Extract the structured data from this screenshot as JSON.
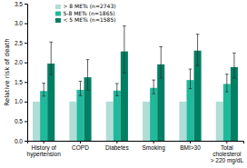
{
  "chart_data": {
    "type": "bar",
    "categories": [
      "History of\nhypertension",
      "COPD",
      "Diabetes",
      "Smoking",
      "BMI>30",
      "Total\ncholesterol\n> 220 mg/dL"
    ],
    "series": [
      {
        "name": "> 8 METs (n=2743)",
        "color": "#b0ddd5",
        "values": [
          1.0,
          1.0,
          1.0,
          1.0,
          1.0,
          1.0
        ],
        "error_low": [
          0.0,
          0.0,
          0.0,
          0.0,
          0.0,
          0.0
        ],
        "error_high": [
          0.0,
          0.0,
          0.0,
          0.0,
          0.0,
          0.0
        ]
      },
      {
        "name": "5-8 METs (n=1865)",
        "color": "#1fb99c",
        "values": [
          1.27,
          1.3,
          1.28,
          1.35,
          1.55,
          1.45
        ],
        "error_low": [
          0.13,
          0.15,
          0.13,
          0.15,
          0.22,
          0.2
        ],
        "error_high": [
          0.2,
          0.22,
          0.18,
          0.2,
          0.28,
          0.25
        ]
      },
      {
        "name": "< 5 METs (n=1585)",
        "color": "#007f62",
        "values": [
          1.97,
          1.62,
          2.28,
          1.95,
          2.3,
          1.88
        ],
        "error_low": [
          0.28,
          0.32,
          0.55,
          0.35,
          0.38,
          0.28
        ],
        "error_high": [
          0.55,
          0.45,
          0.65,
          0.45,
          0.42,
          0.36
        ]
      }
    ],
    "ylabel": "Relative risk of death",
    "ylim": [
      0,
      3.5
    ],
    "yticks": [
      {
        "value": 0.0,
        "label": "0.0"
      },
      0.5,
      {
        "value": 1.0,
        "label": "1.0"
      },
      1.5,
      {
        "value": 2.0,
        "label": "2.0"
      },
      2.5,
      {
        "value": 3.0,
        "label": "3.0"
      },
      3.5
    ],
    "grid": false,
    "legend": "upper left"
  }
}
